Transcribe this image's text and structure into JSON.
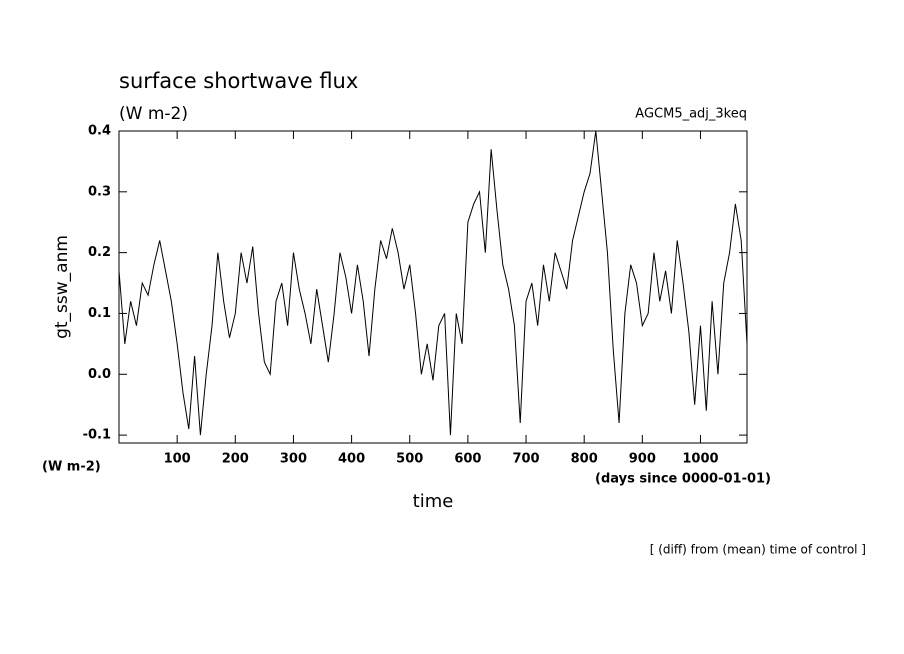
{
  "chart_data": {
    "type": "line",
    "title": "surface shortwave flux",
    "subtitle": "(W m-2)",
    "annotation": "AGCM5_adj_3keq",
    "ylabel": "gt_ssw_anm",
    "yunit": "(W m-2)",
    "xunit": "(days since 0000-01-01)",
    "xlabel": "time",
    "footnote": "[ (diff) from (mean) time of control ]",
    "color": "#000000",
    "xlim": [
      0,
      1080
    ],
    "ylim": [
      -0.113,
      0.4
    ],
    "xticks": [
      100,
      200,
      300,
      400,
      500,
      600,
      700,
      800,
      900,
      1000
    ],
    "yticks": [
      -0.1,
      {
        "value": 0,
        "label": "0.0"
      },
      0.1,
      0.2,
      0.3,
      0.4
    ],
    "x": [
      0,
      10,
      20,
      30,
      40,
      50,
      60,
      70,
      80,
      90,
      100,
      110,
      120,
      130,
      140,
      150,
      160,
      170,
      180,
      190,
      200,
      210,
      220,
      230,
      240,
      250,
      260,
      270,
      280,
      290,
      300,
      310,
      320,
      330,
      340,
      350,
      360,
      370,
      380,
      390,
      400,
      410,
      420,
      430,
      440,
      450,
      460,
      470,
      480,
      490,
      500,
      510,
      520,
      530,
      540,
      550,
      560,
      570,
      580,
      590,
      600,
      610,
      620,
      630,
      640,
      650,
      660,
      670,
      680,
      690,
      700,
      710,
      720,
      730,
      740,
      750,
      760,
      770,
      780,
      790,
      800,
      810,
      820,
      830,
      840,
      850,
      860,
      870,
      880,
      890,
      900,
      910,
      920,
      930,
      940,
      950,
      960,
      970,
      980,
      990,
      1000,
      1010,
      1020,
      1030,
      1040,
      1050,
      1060,
      1070,
      1080
    ],
    "values": [
      0.17,
      0.05,
      0.12,
      0.08,
      0.15,
      0.13,
      0.18,
      0.22,
      0.17,
      0.12,
      0.05,
      -0.03,
      -0.09,
      0.03,
      -0.1,
      0.0,
      0.08,
      0.2,
      0.12,
      0.06,
      0.1,
      0.2,
      0.15,
      0.21,
      0.1,
      0.02,
      0.0,
      0.12,
      0.15,
      0.08,
      0.2,
      0.14,
      0.1,
      0.05,
      0.14,
      0.08,
      0.02,
      0.1,
      0.2,
      0.16,
      0.1,
      0.18,
      0.12,
      0.03,
      0.14,
      0.22,
      0.19,
      0.24,
      0.2,
      0.14,
      0.18,
      0.1,
      0.0,
      0.05,
      -0.01,
      0.08,
      0.1,
      -0.1,
      0.1,
      0.05,
      0.25,
      0.28,
      0.3,
      0.2,
      0.37,
      0.27,
      0.18,
      0.14,
      0.08,
      -0.08,
      0.12,
      0.15,
      0.08,
      0.18,
      0.12,
      0.2,
      0.17,
      0.14,
      0.22,
      0.26,
      0.3,
      0.33,
      0.4,
      0.3,
      0.2,
      0.04,
      -0.08,
      0.1,
      0.18,
      0.15,
      0.08,
      0.1,
      0.2,
      0.12,
      0.17,
      0.1,
      0.22,
      0.15,
      0.07,
      -0.05,
      0.08,
      -0.06,
      0.12,
      0.0,
      0.15,
      0.2,
      0.28,
      0.22,
      0.05
    ]
  }
}
